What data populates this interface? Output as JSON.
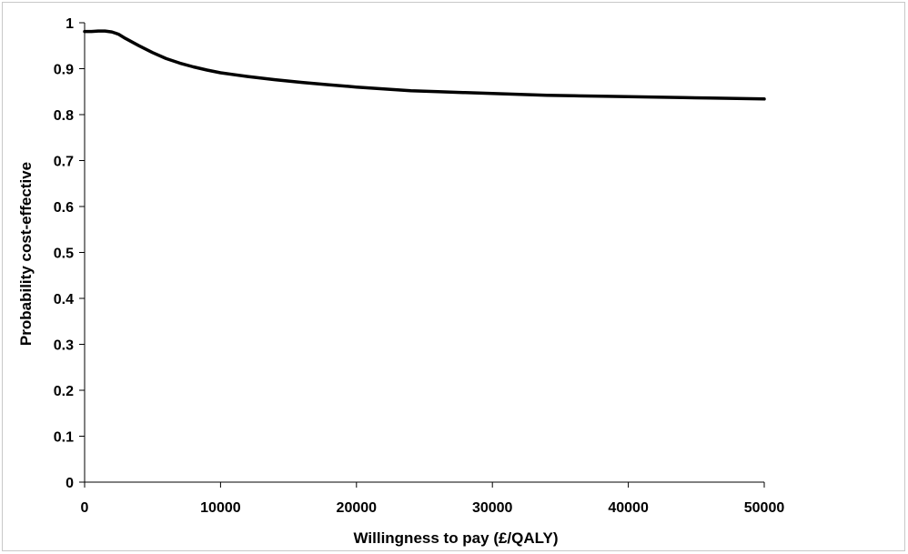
{
  "chart_data": {
    "type": "line",
    "title": "",
    "xlabel": "Willingness to pay (£/QALY)",
    "ylabel": "Probability cost-effective",
    "xlim": [
      0,
      50000
    ],
    "ylim": [
      0,
      1
    ],
    "x_ticks": [
      0,
      10000,
      20000,
      30000,
      40000,
      50000
    ],
    "y_ticks": [
      0,
      0.1,
      0.2,
      0.3,
      0.4,
      0.5,
      0.6,
      0.7,
      0.8,
      0.9,
      1
    ],
    "y_tick_labels": [
      "0",
      "0.1",
      "0.2",
      "0.3",
      "0.4",
      "0.5",
      "0.6",
      "0.7",
      "0.8",
      "0.9",
      "1"
    ],
    "grid": false,
    "legend": "none",
    "line_color": "#000000",
    "series": [
      {
        "x": [
          0,
          500,
          1000,
          1500,
          2000,
          2500,
          3000,
          4000,
          5000,
          6000,
          7000,
          8000,
          9000,
          10000,
          12000,
          14000,
          16000,
          18000,
          20000,
          22000,
          24000,
          26000,
          28000,
          30000,
          32000,
          34000,
          36000,
          38000,
          40000,
          42000,
          44000,
          46000,
          48000,
          50000
        ],
        "y": [
          0.981,
          0.981,
          0.982,
          0.982,
          0.98,
          0.975,
          0.966,
          0.95,
          0.935,
          0.922,
          0.912,
          0.904,
          0.897,
          0.891,
          0.883,
          0.876,
          0.87,
          0.865,
          0.86,
          0.856,
          0.852,
          0.85,
          0.848,
          0.846,
          0.844,
          0.842,
          0.841,
          0.84,
          0.839,
          0.838,
          0.837,
          0.836,
          0.835,
          0.834
        ]
      }
    ]
  }
}
